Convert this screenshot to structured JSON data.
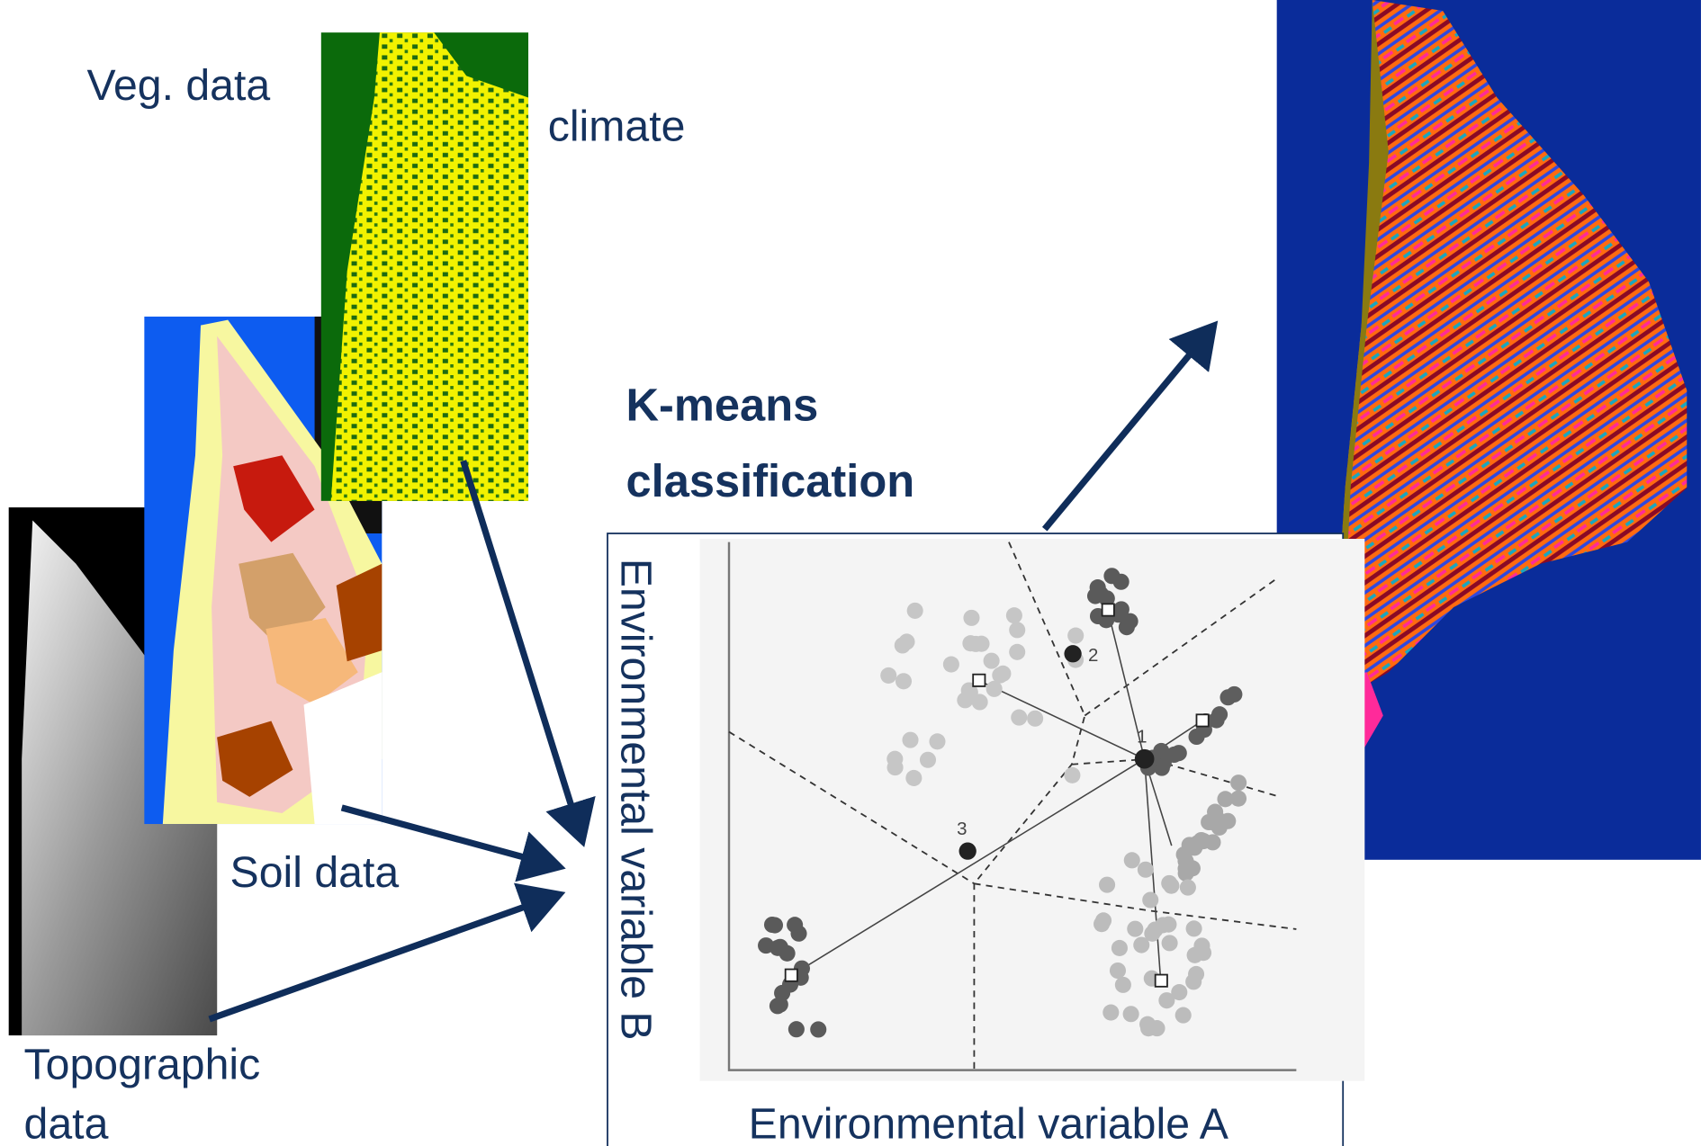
{
  "labels": {
    "veg": "Veg. data",
    "climate": "climate",
    "soil": "Soil data",
    "topographic": [
      "Topographic",
      "data"
    ],
    "method": [
      "K-means",
      "classification"
    ]
  },
  "scatter": {
    "y_axis_label": "Environmental variable B",
    "x_axis_label": "Environmental variable A",
    "centroid_labels": [
      "1",
      "2",
      "3"
    ]
  }
}
